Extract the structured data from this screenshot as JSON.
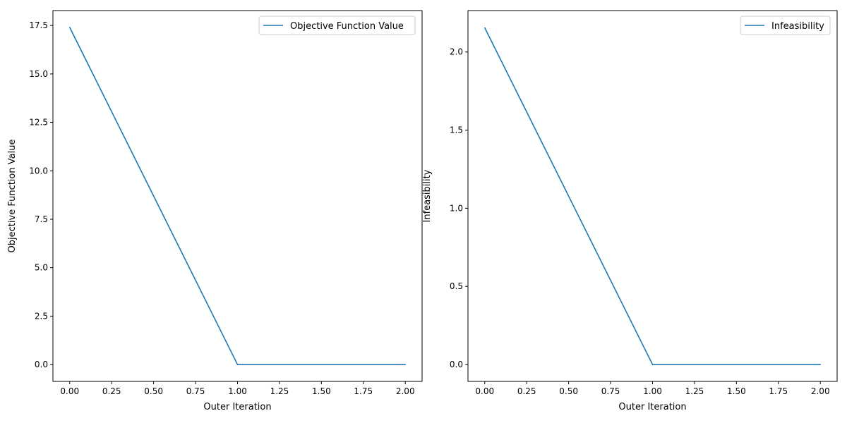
{
  "chart_data": [
    {
      "type": "line",
      "xlabel": "Outer Iteration",
      "ylabel": "Objective Function Value",
      "xlim": [
        -0.1,
        2.1
      ],
      "ylim": [
        -0.87,
        18.27
      ],
      "xticks": [
        "0.00",
        "0.25",
        "0.50",
        "0.75",
        "1.00",
        "1.25",
        "1.50",
        "1.75",
        "2.00"
      ],
      "yticks": [
        "0.0",
        "2.5",
        "5.0",
        "7.5",
        "10.0",
        "12.5",
        "15.0",
        "17.5"
      ],
      "legend_position": "top-right",
      "grid": false,
      "color": "#1f77b4",
      "series": [
        {
          "name": "Objective Function Value",
          "x": [
            0,
            1,
            2
          ],
          "y": [
            17.4,
            0,
            0
          ]
        }
      ]
    },
    {
      "type": "line",
      "xlabel": "Outer Iteration",
      "ylabel": "Infeasibility",
      "xlim": [
        -0.1,
        2.1
      ],
      "ylim": [
        -0.108,
        2.265
      ],
      "xticks": [
        "0.00",
        "0.25",
        "0.50",
        "0.75",
        "1.00",
        "1.25",
        "1.50",
        "1.75",
        "2.00"
      ],
      "yticks": [
        "0.0",
        "0.5",
        "1.0",
        "1.5",
        "2.0"
      ],
      "legend_position": "top-right",
      "grid": false,
      "color": "#1f77b4",
      "series": [
        {
          "name": "Infeasibility",
          "x": [
            0,
            1,
            2
          ],
          "y": [
            2.155,
            0,
            0
          ]
        }
      ]
    }
  ]
}
